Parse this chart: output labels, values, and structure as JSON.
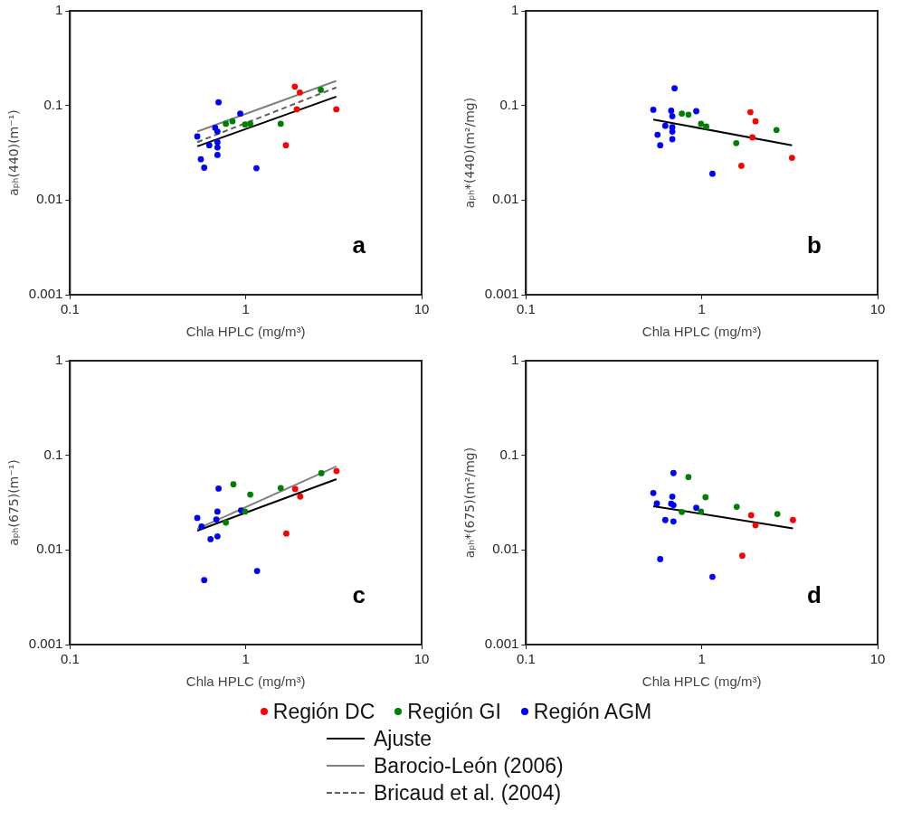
{
  "chart_data": [
    {
      "type": "scatter",
      "xlabel": "Chla HPLC (mg/m³)",
      "ylabel": "aₚₕ(440)(m⁻¹)",
      "annotations": [
        "a"
      ],
      "log": "xy",
      "xlim": [
        0.1,
        10
      ],
      "ylim": [
        0.001,
        1
      ],
      "xticks": [
        0.1,
        1,
        10
      ],
      "yticks": [
        0.001,
        0.01,
        0.1,
        1
      ],
      "grid": false,
      "legend": "bottom",
      "marker": "circle",
      "series": [
        {
          "name": "Región DC",
          "color": "#ff0000",
          "x": [
            1.9,
            2.03,
            1.95,
            3.27,
            1.69
          ],
          "values": [
            0.158,
            0.137,
            0.091,
            0.091,
            0.038
          ]
        },
        {
          "name": "Región GI",
          "color": "#008000",
          "x": [
            0.77,
            0.84,
            0.99,
            1.06,
            1.58,
            2.67
          ],
          "values": [
            0.064,
            0.068,
            0.063,
            0.064,
            0.064,
            0.146
          ]
        },
        {
          "name": "Región AGM",
          "color": "#0000ff",
          "x": [
            0.53,
            0.7,
            0.93,
            0.67,
            0.69,
            0.62,
            0.69,
            0.69,
            0.69,
            0.555,
            0.58,
            1.15
          ],
          "values": [
            0.047,
            0.108,
            0.082,
            0.058,
            0.053,
            0.038,
            0.041,
            0.036,
            0.03,
            0.027,
            0.022,
            0.0217
          ]
        },
        {
          "name": "Ajuste",
          "type": "line",
          "color": "#000000",
          "marker": "none",
          "line_style": "solid",
          "x": [
            0.53,
            3.27
          ],
          "values": [
            0.037,
            0.124
          ]
        },
        {
          "name": "Barocio-León (2006)",
          "type": "line",
          "color": "#808080",
          "marker": "none",
          "line_style": "solid",
          "x": [
            0.53,
            3.27
          ],
          "values": [
            0.053,
            0.182
          ]
        },
        {
          "name": "Bricaud et al. (2004)",
          "type": "line",
          "color": "#606060",
          "marker": "none",
          "line_style": "dashed",
          "x": [
            0.53,
            3.27
          ],
          "values": [
            0.041,
            0.155
          ]
        }
      ]
    },
    {
      "type": "scatter",
      "xlabel": "Chla HPLC (mg/m³)",
      "ylabel": "aₚₕ*(440)(m²/mg)",
      "annotations": [
        "b"
      ],
      "log": "xy",
      "xlim": [
        0.1,
        10
      ],
      "ylim": [
        0.001,
        1
      ],
      "xticks": [
        0.1,
        1,
        10
      ],
      "yticks": [
        0.001,
        0.01,
        0.1,
        1
      ],
      "grid": false,
      "legend": "bottom",
      "marker": "circle",
      "series": [
        {
          "name": "Región DC",
          "color": "#ff0000",
          "x": [
            1.89,
            2.02,
            1.94,
            3.26,
            1.68
          ],
          "values": [
            0.085,
            0.068,
            0.046,
            0.028,
            0.023
          ]
        },
        {
          "name": "Región GI",
          "color": "#008000",
          "x": [
            0.77,
            0.84,
            0.99,
            1.06,
            1.57,
            2.66
          ],
          "values": [
            0.082,
            0.08,
            0.064,
            0.06,
            0.04,
            0.055
          ]
        },
        {
          "name": "Región AGM",
          "color": "#0000ff",
          "x": [
            0.53,
            0.7,
            0.67,
            0.68,
            0.93,
            0.62,
            0.68,
            0.68,
            0.56,
            0.68,
            0.58,
            1.15
          ],
          "values": [
            0.09,
            0.152,
            0.088,
            0.077,
            0.087,
            0.061,
            0.059,
            0.053,
            0.049,
            0.044,
            0.038,
            0.019
          ]
        },
        {
          "name": "Ajuste",
          "type": "line",
          "color": "#000000",
          "marker": "none",
          "line_style": "solid",
          "x": [
            0.53,
            3.26
          ],
          "values": [
            0.071,
            0.038
          ]
        }
      ]
    },
    {
      "type": "scatter",
      "xlabel": "Chla HPLC (mg/m³)",
      "ylabel": "aₚₕ(675)(m⁻¹)",
      "annotations": [
        "c"
      ],
      "log": "xy",
      "xlim": [
        0.1,
        10
      ],
      "ylim": [
        0.001,
        1
      ],
      "xticks": [
        0.1,
        1,
        10
      ],
      "yticks": [
        0.001,
        0.01,
        0.1,
        1
      ],
      "grid": false,
      "legend": "bottom",
      "marker": "circle",
      "series": [
        {
          "name": "Región DC",
          "color": "#ff0000",
          "x": [
            1.91,
            2.04,
            1.7,
            3.28
          ],
          "values": [
            0.0441,
            0.0367,
            0.0149,
            0.0682
          ]
        },
        {
          "name": "Región GI",
          "color": "#008000",
          "x": [
            0.85,
            0.77,
            1.06,
            0.99,
            1.58,
            2.69
          ],
          "values": [
            0.0495,
            0.0195,
            0.0385,
            0.0254,
            0.0451,
            0.0647
          ]
        },
        {
          "name": "Región AGM",
          "color": "#0000ff",
          "x": [
            0.53,
            0.56,
            0.7,
            0.69,
            0.68,
            0.94,
            0.63,
            0.69,
            0.58,
            1.16
          ],
          "values": [
            0.0218,
            0.0177,
            0.0445,
            0.0254,
            0.021,
            0.0262,
            0.013,
            0.0139,
            0.0048,
            0.006
          ]
        },
        {
          "name": "Ajuste",
          "type": "line",
          "color": "#000000",
          "marker": "none",
          "line_style": "solid",
          "x": [
            0.53,
            3.28
          ],
          "values": [
            0.016,
            0.056
          ]
        },
        {
          "name": "Barocio-León (2006)",
          "type": "line",
          "color": "#808080",
          "marker": "none",
          "line_style": "solid",
          "x": [
            0.53,
            3.28
          ],
          "values": [
            0.0167,
            0.0765
          ]
        }
      ]
    },
    {
      "type": "scatter",
      "xlabel": "Chla HPLC (mg/m³)",
      "ylabel": "aₚₕ*(675)(m²/mg)",
      "annotations": [
        "d"
      ],
      "log": "xy",
      "xlim": [
        0.1,
        10
      ],
      "ylim": [
        0.001,
        1
      ],
      "xticks": [
        0.1,
        1,
        10
      ],
      "yticks": [
        0.001,
        0.01,
        0.1,
        1
      ],
      "grid": false,
      "legend": "bottom",
      "marker": "circle",
      "series": [
        {
          "name": "Región DC",
          "color": "#ff0000",
          "x": [
            1.91,
            2.02,
            1.7,
            3.3
          ],
          "values": [
            0.0233,
            0.0182,
            0.0087,
            0.0207
          ]
        },
        {
          "name": "Región GI",
          "color": "#008000",
          "x": [
            0.84,
            0.77,
            1.05,
            0.99,
            1.58,
            2.69
          ],
          "values": [
            0.059,
            0.0252,
            0.0361,
            0.0255,
            0.0286,
            0.024
          ]
        },
        {
          "name": "Región AGM",
          "color": "#0000ff",
          "x": [
            0.53,
            0.555,
            0.69,
            0.68,
            0.67,
            0.69,
            0.93,
            0.62,
            0.69,
            0.58,
            1.15
          ],
          "values": [
            0.04,
            0.031,
            0.065,
            0.0366,
            0.0308,
            0.0297,
            0.0279,
            0.0207,
            0.02,
            0.008,
            0.0052
          ]
        },
        {
          "name": "Ajuste",
          "type": "line",
          "color": "#000000",
          "marker": "none",
          "line_style": "solid",
          "x": [
            0.53,
            3.3
          ],
          "values": [
            0.029,
            0.0169
          ]
        }
      ]
    }
  ]
}
